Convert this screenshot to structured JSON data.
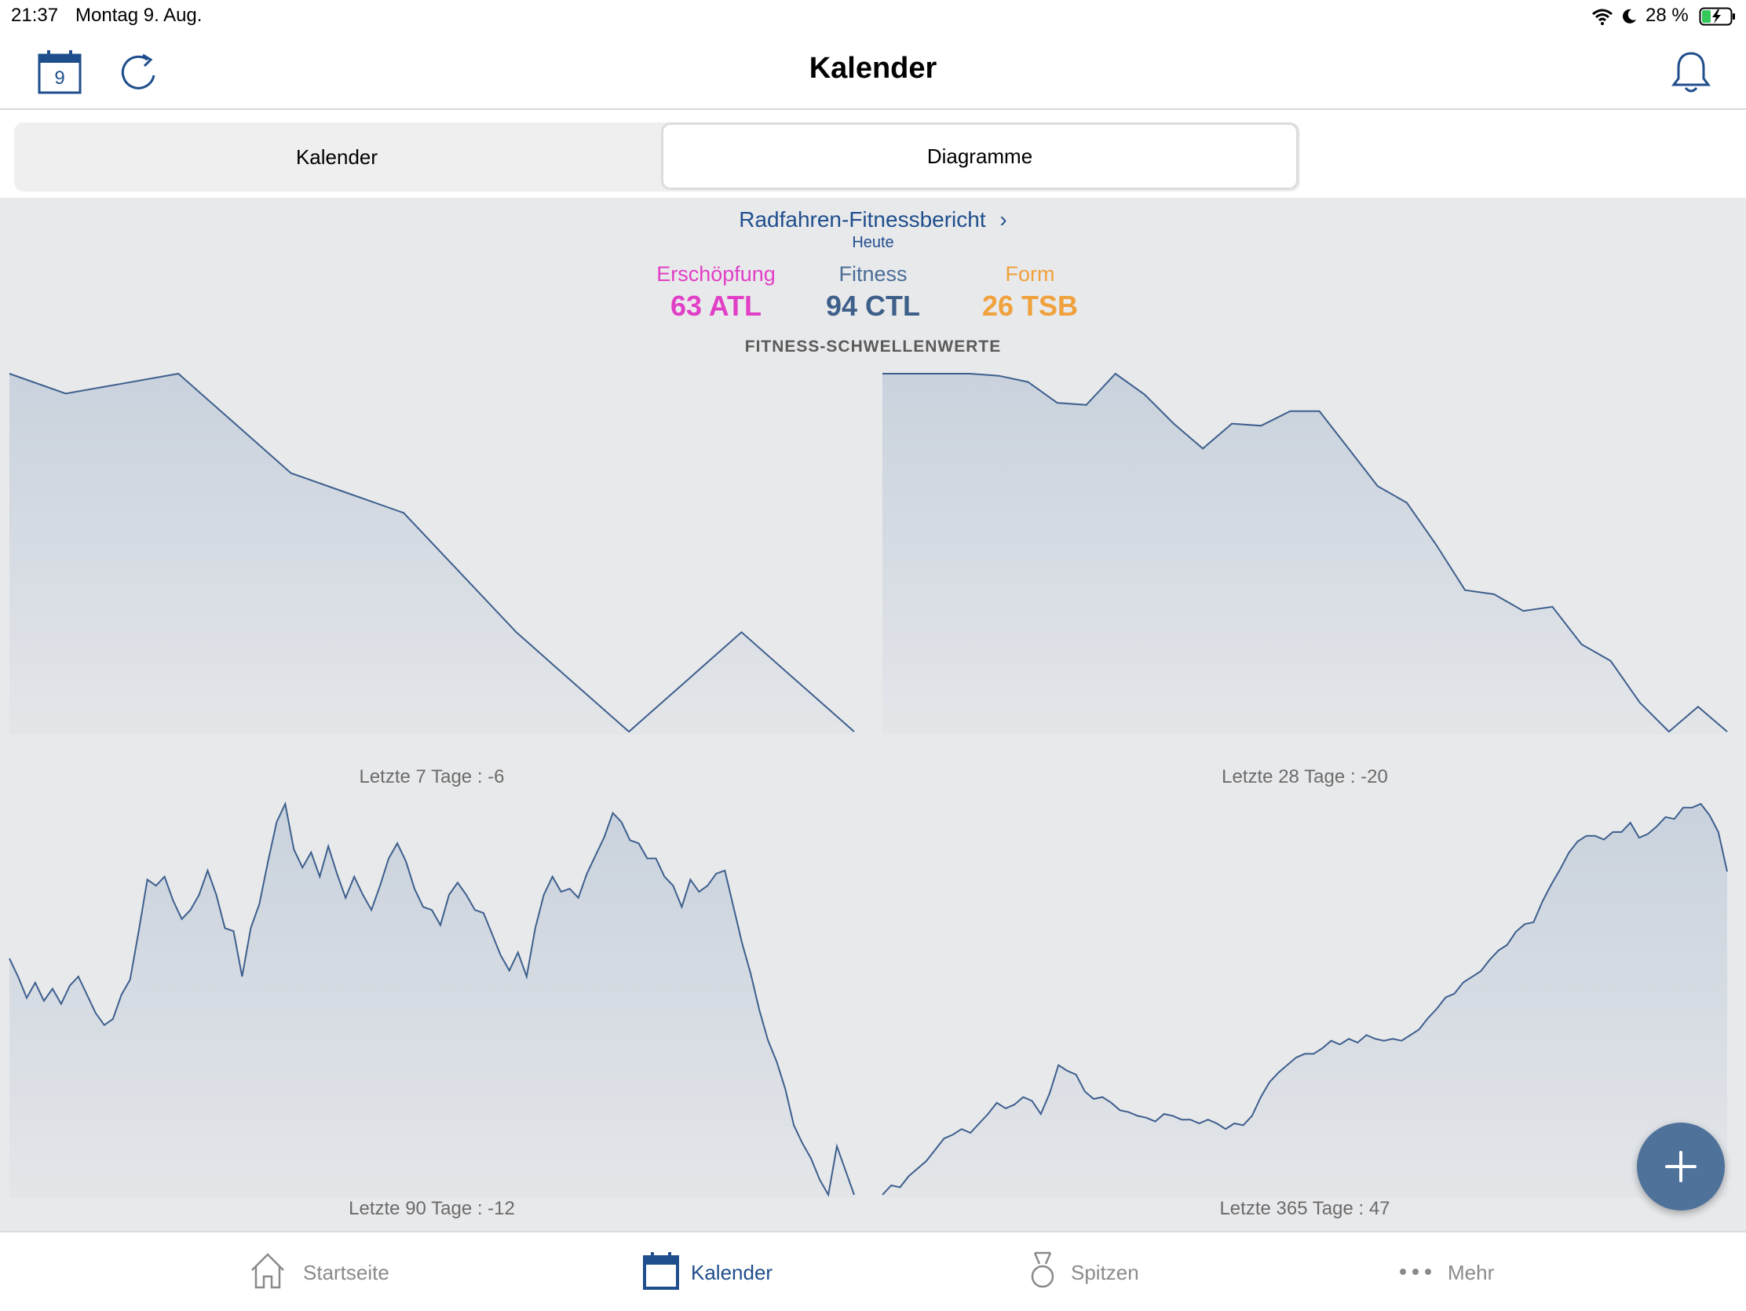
{
  "status_bar": {
    "time": "21:37",
    "date": "Montag 9. Aug.",
    "battery": "28 %"
  },
  "nav": {
    "title": "Kalender",
    "calendar_day": "9"
  },
  "segments": {
    "kalender": "Kalender",
    "diagramme": "Diagramme",
    "selected": "Diagramme"
  },
  "report": {
    "title": "Radfahren-Fitnessbericht",
    "subtitle": "Heute",
    "metrics": {
      "atl": {
        "label": "Erschöpfung",
        "value": "63 ATL"
      },
      "ctl": {
        "label": "Fitness",
        "value": "94 CTL"
      },
      "tsb": {
        "label": "Form",
        "value": "26 TSB"
      }
    },
    "thresholds_title": "FITNESS-SCHWELLENWERTE"
  },
  "colors": {
    "accent": "#1f4e8c",
    "atl": "#e13fc6",
    "ctl": "#3e5f89",
    "tsb": "#f0a13c",
    "line": "#3d5f8d",
    "fill": "#c9d2dd"
  },
  "chart_data": [
    {
      "type": "area",
      "caption": "Letzte 7 Tage : -6",
      "values": [
        92,
        90,
        91,
        92,
        87,
        82,
        80,
        78,
        72,
        66,
        61,
        56,
        61,
        66,
        61,
        56
      ]
    },
    {
      "type": "area",
      "caption": "Letzte 28 Tage : -20",
      "values": [
        114,
        114,
        114,
        114,
        113.5,
        112,
        107,
        106.5,
        114,
        109,
        102,
        96,
        102,
        101.5,
        105,
        105,
        96,
        87,
        83,
        73,
        62,
        61,
        57,
        58,
        49,
        45,
        35,
        28,
        34,
        28
      ]
    },
    {
      "type": "area",
      "caption": "Letzte 90 Tage : -12",
      "values": [
        78,
        72,
        65,
        70,
        64,
        68,
        63,
        69,
        72,
        66,
        60,
        56,
        58,
        66,
        71,
        87,
        104,
        102,
        105,
        97,
        91,
        94,
        99,
        107,
        99,
        88,
        87,
        72,
        88,
        96,
        110,
        123,
        129,
        114,
        108,
        113,
        105,
        115,
        106,
        98,
        105,
        99,
        94,
        102,
        111,
        116,
        110,
        101,
        95,
        94,
        89,
        99,
        103,
        99,
        94,
        93,
        86,
        79,
        74,
        80,
        72,
        88,
        99,
        105,
        100,
        101,
        98,
        106,
        112,
        118,
        126,
        123,
        117,
        116,
        111,
        111,
        105,
        102,
        95,
        104,
        100,
        102,
        106,
        107,
        95,
        83,
        73,
        61,
        51,
        44,
        35,
        23,
        17,
        12,
        5,
        0,
        16,
        8,
        0
      ]
    },
    {
      "type": "area",
      "caption": "Letzte 365 Tage : 47",
      "values": [
        1,
        6,
        5,
        11,
        15,
        19,
        25,
        31,
        33,
        36,
        34,
        39,
        44,
        50,
        47,
        49,
        53,
        51,
        44,
        55,
        70,
        67,
        65,
        56,
        52,
        53,
        50,
        46,
        45,
        43,
        42,
        40,
        44,
        43,
        41,
        41,
        39,
        41,
        39,
        36,
        39,
        38,
        43,
        53,
        61,
        66,
        70,
        74,
        76,
        76,
        79,
        83,
        81,
        84,
        82,
        86,
        84,
        83,
        84,
        83,
        86,
        89,
        95,
        100,
        106,
        108,
        114,
        117,
        120,
        126,
        131,
        134,
        141,
        145,
        146,
        157,
        166,
        174,
        183,
        189,
        192,
        192,
        190,
        194,
        194,
        199,
        191,
        193,
        197,
        202,
        201,
        207,
        207,
        209,
        203,
        194,
        173
      ]
    }
  ],
  "fab": {
    "icon": "plus-icon"
  },
  "tabs": [
    {
      "label": "Startseite",
      "icon": "home-icon"
    },
    {
      "label": "Kalender",
      "icon": "calendar-icon",
      "selected": true
    },
    {
      "label": "Spitzen",
      "icon": "medal-icon"
    },
    {
      "label": "Mehr",
      "icon": "more-icon"
    }
  ]
}
